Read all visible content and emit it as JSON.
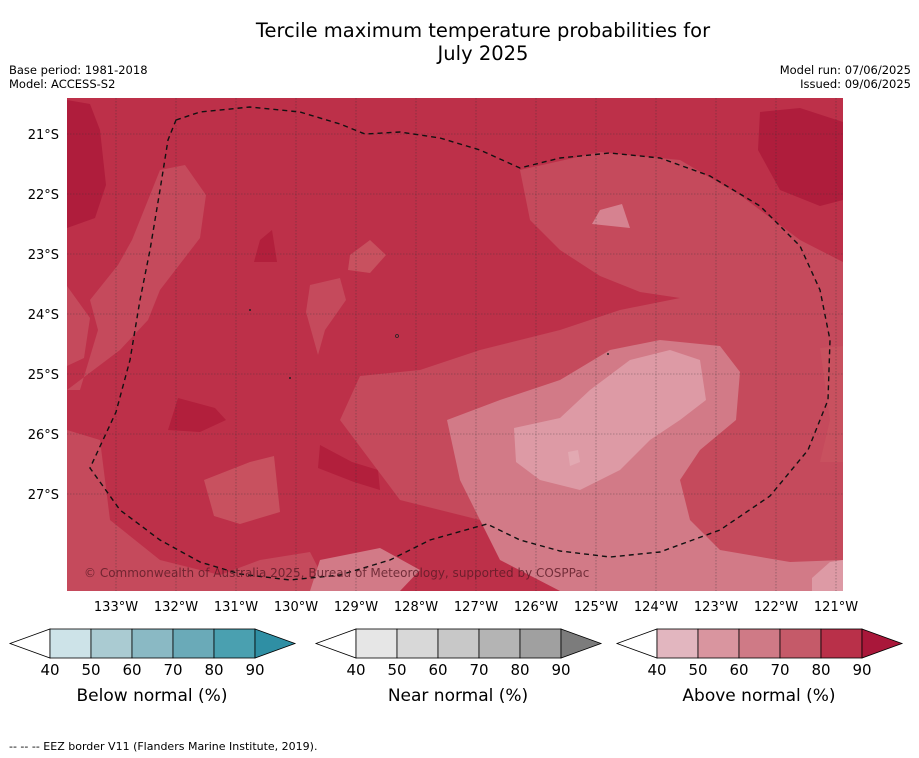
{
  "title_line1": "Tercile maximum temperature probabilities for",
  "title_line2": "July 2025",
  "meta_left": [
    "Base period: 1981-2018",
    "Model: ACCESS-S2"
  ],
  "meta_right": [
    "Model run: 07/06/2025",
    "Issued: 09/06/2025"
  ],
  "copyright": "© Commonwealth of Australia 2025, Bureau of Meteorology, supported by COSPPac",
  "lat_labels": [
    "21°S",
    "22°S",
    "23°S",
    "24°S",
    "25°S",
    "26°S",
    "27°S"
  ],
  "lon_labels": [
    "133°W",
    "132°W",
    "131°W",
    "130°W",
    "129°W",
    "128°W",
    "127°W",
    "126°W",
    "125°W",
    "124°W",
    "123°W",
    "122°W",
    "121°W"
  ],
  "colorbars": [
    {
      "name": "below",
      "label": "Below normal (%)",
      "ticks": [
        "40",
        "50",
        "60",
        "70",
        "80",
        "90"
      ],
      "colors": [
        "#ffffff",
        "#cde3e8",
        "#aacbd2",
        "#8ab9c4",
        "#6aaab8",
        "#4aa0b0",
        "#2f8fa4"
      ]
    },
    {
      "name": "near",
      "label": "Near normal (%)",
      "ticks": [
        "40",
        "50",
        "60",
        "70",
        "80",
        "90"
      ],
      "colors": [
        "#ffffff",
        "#e6e6e6",
        "#d8d8d8",
        "#c8c8c8",
        "#b4b4b4",
        "#a0a0a0",
        "#7c7c7c"
      ]
    },
    {
      "name": "above",
      "label": "Above normal (%)",
      "ticks": [
        "40",
        "50",
        "60",
        "70",
        "80",
        "90"
      ],
      "colors": [
        "#ffffff",
        "#e2b6bf",
        "#d9959f",
        "#cf7a86",
        "#c55a69",
        "#b93049",
        "#a9173a"
      ]
    }
  ],
  "footer": "-- -- -- EEZ border V11 (Flanders Marine Institute, 2019)."
}
